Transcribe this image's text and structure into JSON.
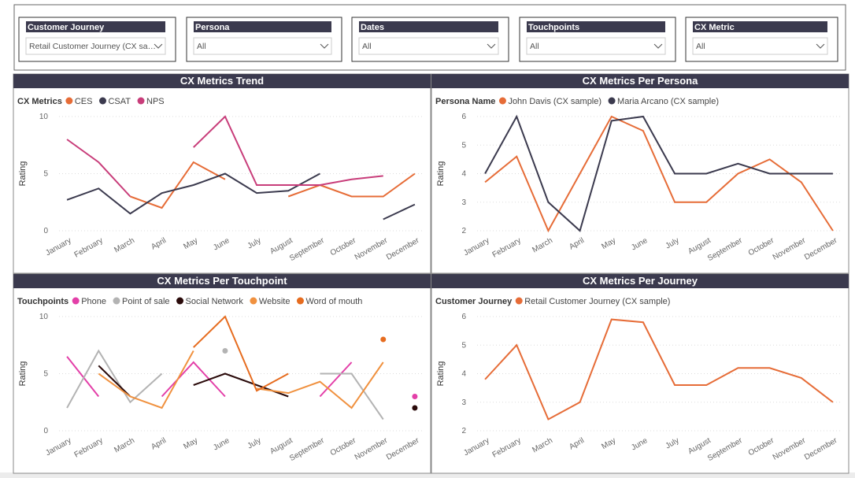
{
  "filters": [
    {
      "label": "Customer Journey",
      "value": "Retail Customer Journey (CX sa…"
    },
    {
      "label": "Persona",
      "value": "All"
    },
    {
      "label": "Dates",
      "value": "All"
    },
    {
      "label": "Touchpoints",
      "value": "All"
    },
    {
      "label": "CX Metric",
      "value": "All"
    }
  ],
  "chart_data": [
    {
      "type": "line",
      "title": "CX Metrics Trend",
      "legend_title": "CX Metrics",
      "y_label": "Rating",
      "categories": [
        "January",
        "February",
        "March",
        "April",
        "May",
        "June",
        "July",
        "August",
        "September",
        "October",
        "November",
        "December"
      ],
      "series": [
        {
          "name": "CES",
          "color": "#e66c37",
          "values": [
            null,
            null,
            3,
            2,
            6,
            4.5,
            null,
            3,
            4,
            3,
            3,
            5
          ]
        },
        {
          "name": "CSAT",
          "color": "#3b3a4e",
          "values": [
            2.7,
            3.7,
            1.5,
            3.3,
            4,
            5,
            3.3,
            3.5,
            5,
            null,
            1,
            2.3
          ]
        },
        {
          "name": "NPS",
          "color": "#c83d7a",
          "values": [
            8,
            6,
            3,
            null,
            7.3,
            10,
            4,
            4,
            4,
            4.5,
            4.8,
            null
          ]
        }
      ],
      "ylim": [
        0,
        10
      ],
      "yticks": [
        0,
        5,
        10
      ],
      "grid": true
    },
    {
      "type": "line",
      "title": "CX Metrics Per Persona",
      "legend_title": "Persona Name",
      "y_label": "Rating",
      "categories": [
        "January",
        "February",
        "March",
        "April",
        "May",
        "June",
        "July",
        "August",
        "September",
        "October",
        "November",
        "December"
      ],
      "series": [
        {
          "name": "John Davis (CX sample)",
          "color": "#e66c37",
          "values": [
            3.7,
            4.6,
            2,
            4,
            6,
            5.5,
            3,
            3,
            4,
            4.5,
            3.7,
            2
          ]
        },
        {
          "name": "Maria Arcano (CX sample)",
          "color": "#3b3a4e",
          "values": [
            4,
            6,
            3,
            2,
            5.85,
            6,
            4,
            4,
            4.35,
            4,
            4,
            4
          ]
        }
      ],
      "ylim": [
        2,
        6
      ],
      "yticks": [
        2,
        3,
        4,
        5,
        6
      ],
      "grid": true
    },
    {
      "type": "line",
      "title": "CX Metrics Per Touchpoint",
      "legend_title": "Touchpoints",
      "y_label": "Rating",
      "categories": [
        "January",
        "February",
        "March",
        "April",
        "May",
        "June",
        "July",
        "August",
        "September",
        "October",
        "November",
        "December"
      ],
      "series": [
        {
          "name": "Phone",
          "color": "#e33fa8",
          "values": [
            6.5,
            3,
            null,
            3,
            6,
            3,
            null,
            null,
            3,
            6,
            null,
            3
          ]
        },
        {
          "name": "Point of sale",
          "color": "#b3b3b3",
          "values": [
            2,
            7,
            2.5,
            5,
            null,
            7,
            null,
            null,
            5,
            5,
            1,
            null
          ]
        },
        {
          "name": "Social Network",
          "color": "#2a0a0a",
          "values": [
            null,
            5.7,
            3,
            null,
            4,
            5,
            4,
            3,
            null,
            null,
            null,
            2
          ]
        },
        {
          "name": "Website",
          "color": "#f0913f",
          "values": [
            null,
            5,
            3,
            2,
            7,
            null,
            3.7,
            3.3,
            4.3,
            2,
            6,
            null
          ]
        },
        {
          "name": "Word of mouth",
          "color": "#e66c1f",
          "values": [
            null,
            null,
            null,
            null,
            7.3,
            10,
            3.5,
            5,
            null,
            null,
            8,
            null
          ]
        }
      ],
      "ylim": [
        0,
        10
      ],
      "yticks": [
        0,
        5,
        10
      ],
      "grid": true
    },
    {
      "type": "line",
      "title": "CX Metrics Per Journey",
      "legend_title": "Customer Journey",
      "y_label": "Rating",
      "categories": [
        "January",
        "February",
        "March",
        "April",
        "May",
        "June",
        "July",
        "August",
        "September",
        "October",
        "November",
        "December"
      ],
      "series": [
        {
          "name": "Retail Customer Journey (CX sample)",
          "color": "#e66c37",
          "values": [
            3.8,
            5,
            2.4,
            3,
            5.9,
            5.8,
            3.6,
            3.6,
            4.2,
            4.2,
            3.85,
            3
          ]
        }
      ],
      "ylim": [
        2,
        6
      ],
      "yticks": [
        2,
        3,
        4,
        5,
        6
      ],
      "grid": true
    }
  ]
}
